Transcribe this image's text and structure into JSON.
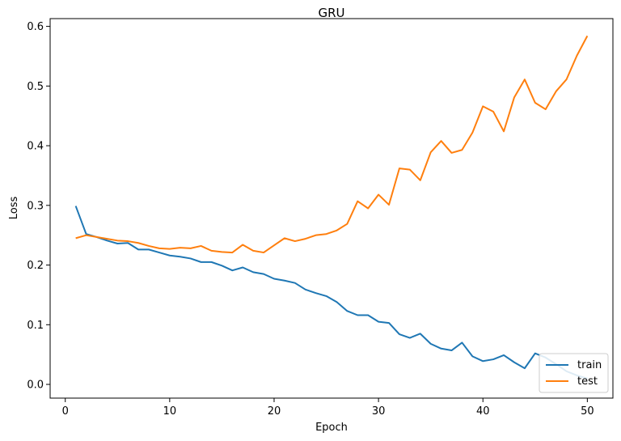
{
  "chart_data": {
    "type": "line",
    "title": "GRU",
    "xlabel": "Epoch",
    "ylabel": "Loss",
    "xlim": [
      -1.45,
      52.45
    ],
    "ylim": [
      -0.023,
      0.613
    ],
    "xticks": [
      0,
      10,
      20,
      30,
      40,
      50
    ],
    "yticks": [
      0.0,
      0.1,
      0.2,
      0.3,
      0.4,
      0.5,
      0.6
    ],
    "grid": false,
    "legend_position": "lower right",
    "x": [
      1,
      2,
      3,
      4,
      5,
      6,
      7,
      8,
      9,
      10,
      11,
      12,
      13,
      14,
      15,
      16,
      17,
      18,
      19,
      20,
      21,
      22,
      23,
      24,
      25,
      26,
      27,
      28,
      29,
      30,
      31,
      32,
      33,
      34,
      35,
      36,
      37,
      38,
      39,
      40,
      41,
      42,
      43,
      44,
      45,
      46,
      47,
      48,
      49,
      50
    ],
    "series": [
      {
        "name": "train",
        "color": "#1f77b4",
        "values": [
          0.299,
          0.252,
          0.247,
          0.241,
          0.236,
          0.237,
          0.226,
          0.226,
          0.221,
          0.216,
          0.214,
          0.211,
          0.205,
          0.205,
          0.199,
          0.191,
          0.196,
          0.188,
          0.185,
          0.177,
          0.174,
          0.17,
          0.159,
          0.153,
          0.148,
          0.138,
          0.123,
          0.116,
          0.116,
          0.105,
          0.103,
          0.084,
          0.078,
          0.085,
          0.068,
          0.06,
          0.057,
          0.07,
          0.047,
          0.039,
          0.042,
          0.049,
          0.037,
          0.027,
          0.052,
          0.045,
          0.034,
          0.022,
          0.015,
          0.01
        ]
      },
      {
        "name": "test",
        "color": "#ff7f0e",
        "values": [
          0.245,
          0.25,
          0.247,
          0.244,
          0.241,
          0.24,
          0.237,
          0.232,
          0.228,
          0.227,
          0.229,
          0.228,
          0.232,
          0.224,
          0.222,
          0.221,
          0.234,
          0.224,
          0.221,
          0.233,
          0.245,
          0.24,
          0.244,
          0.25,
          0.252,
          0.258,
          0.269,
          0.307,
          0.295,
          0.318,
          0.301,
          0.362,
          0.36,
          0.342,
          0.389,
          0.408,
          0.388,
          0.393,
          0.422,
          0.466,
          0.457,
          0.424,
          0.481,
          0.511,
          0.472,
          0.461,
          0.491,
          0.511,
          0.551,
          0.584
        ]
      }
    ]
  }
}
